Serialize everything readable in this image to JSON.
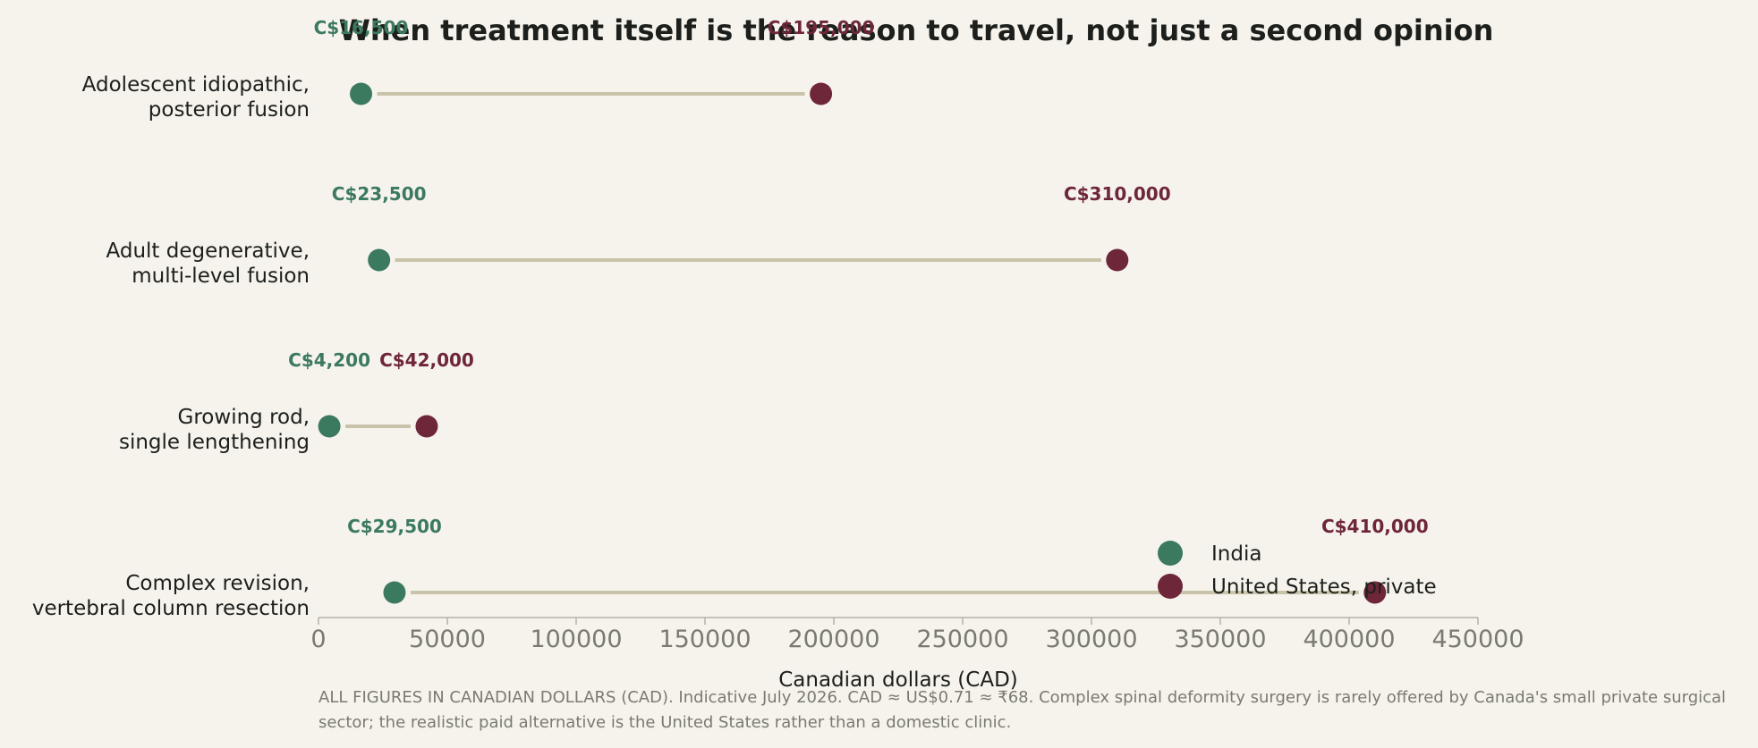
{
  "chart_data": {
    "type": "dumbbell",
    "title": "When treatment itself is the reason to travel, not just a second opinion",
    "xlabel": "Canadian dollars (CAD)",
    "ylabel": "",
    "xlim": [
      0,
      450000
    ],
    "xticks": [
      0,
      50000,
      100000,
      150000,
      200000,
      250000,
      300000,
      350000,
      400000,
      450000
    ],
    "xtick_labels": [
      "0",
      "50000",
      "100000",
      "150000",
      "200000",
      "250000",
      "300000",
      "350000",
      "400000",
      "450000"
    ],
    "grid": false,
    "legend_position": "bottom-right",
    "categories": [
      [
        "Adolescent idiopathic,",
        "posterior fusion"
      ],
      [
        "Adult degenerative,",
        "multi-level fusion"
      ],
      [
        "Growing rod,",
        "single lengthening"
      ],
      [
        "Complex revision,",
        "vertebral column resection"
      ]
    ],
    "series": [
      {
        "name": "India",
        "color": "#3c7a5f",
        "values": [
          16500,
          23500,
          4200,
          29500
        ],
        "labels": [
          "C$16,500",
          "C$23,500",
          "C$4,200",
          "C$29,500"
        ]
      },
      {
        "name": "United States, private",
        "color": "#6e2639",
        "values": [
          195000,
          310000,
          42000,
          410000
        ],
        "labels": [
          "C$195,000",
          "C$310,000",
          "C$42,000",
          "C$410,000"
        ]
      }
    ],
    "connector_color": "#c9c3a9",
    "footnote": "ALL FIGURES IN CANADIAN DOLLARS (CAD). Indicative July 2026. CAD ≈ US$0.71 ≈ ₹68. Complex spinal deformity surgery is rarely offered by Canada's small private surgical sector; the realistic paid alternative is the United States rather than a domestic clinic."
  }
}
